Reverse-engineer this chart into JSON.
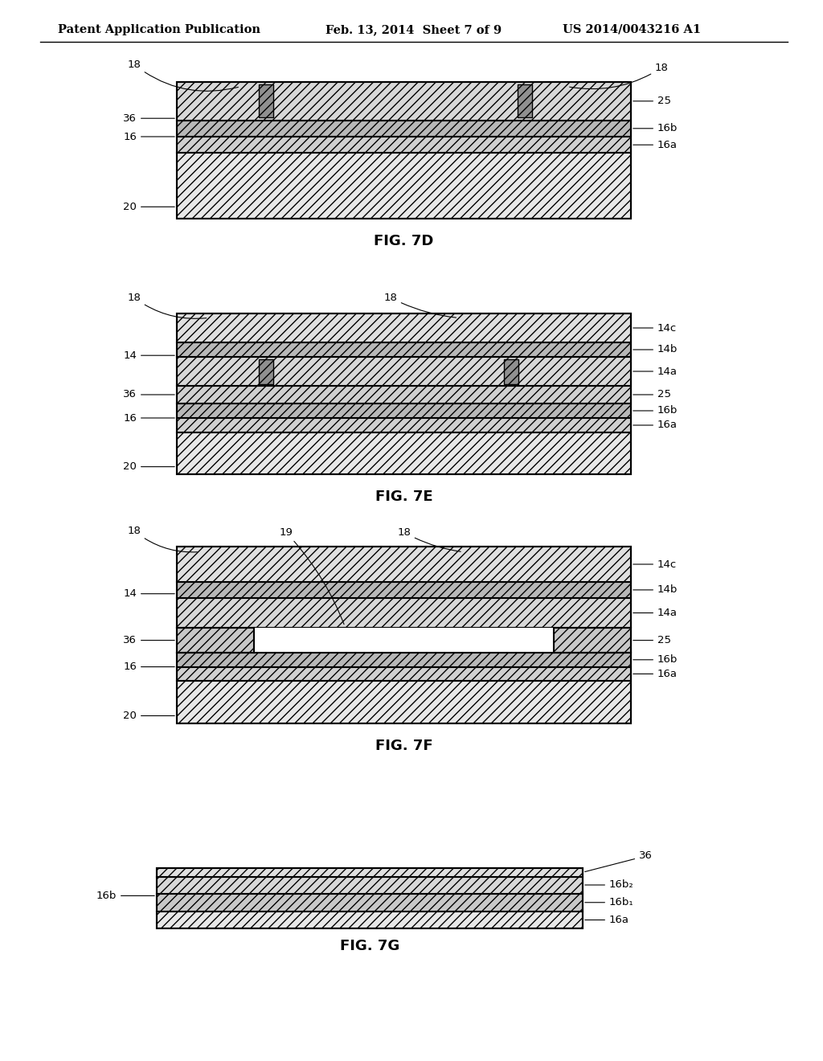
{
  "bg_color": "#ffffff",
  "header_left": "Patent Application Publication",
  "header_mid": "Feb. 13, 2014  Sheet 7 of 9",
  "header_right": "US 2014/0043216 A1",
  "fig_label_fontsize": 13,
  "anno_fontsize": 9.5,
  "lw": 1.5
}
